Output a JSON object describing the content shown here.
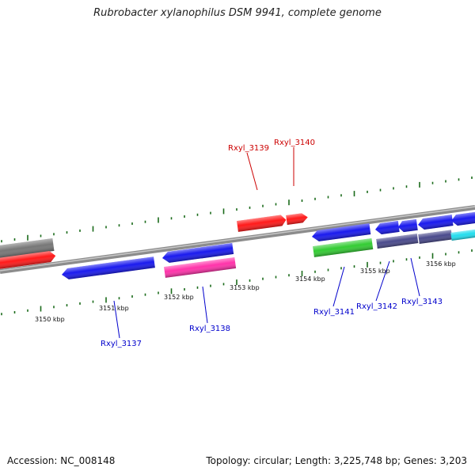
{
  "title": "Rubrobacter xylanophilus DSM 9941, complete genome",
  "footer": {
    "accession": "Accession: NC_008148",
    "topology": "Topology: circular; Length: 3,225,748 bp; Genes: 3,203"
  },
  "colors": {
    "backbone": "#9a9a9a",
    "tick": "#1a6b1a",
    "label_red": "#cc0000",
    "label_blue": "#0000cc"
  },
  "scale_labels": [
    "3150 kbp",
    "3151 kbp",
    "3152 kbp",
    "3153 kbp",
    "3154 kbp",
    "3155 kbp",
    "3156 kbp"
  ],
  "gene_labels": [
    {
      "text": "Rxyl_3139",
      "color": "red"
    },
    {
      "text": "Rxyl_3140",
      "color": "red"
    },
    {
      "text": "Rxyl_3137",
      "color": "blue"
    },
    {
      "text": "Rxyl_3138",
      "color": "blue"
    },
    {
      "text": "Rxyl_3141",
      "color": "blue"
    },
    {
      "text": "Rxyl_3142",
      "color": "blue"
    },
    {
      "text": "Rxyl_3143",
      "color": "blue"
    }
  ],
  "gene_colors": {
    "gray": "#777777",
    "red": "#ff1a1a",
    "blue": "#1a1aee",
    "pink": "#ff33aa",
    "green": "#33cc33",
    "slate": "#4a4a8c",
    "cyan": "#22ddee"
  }
}
